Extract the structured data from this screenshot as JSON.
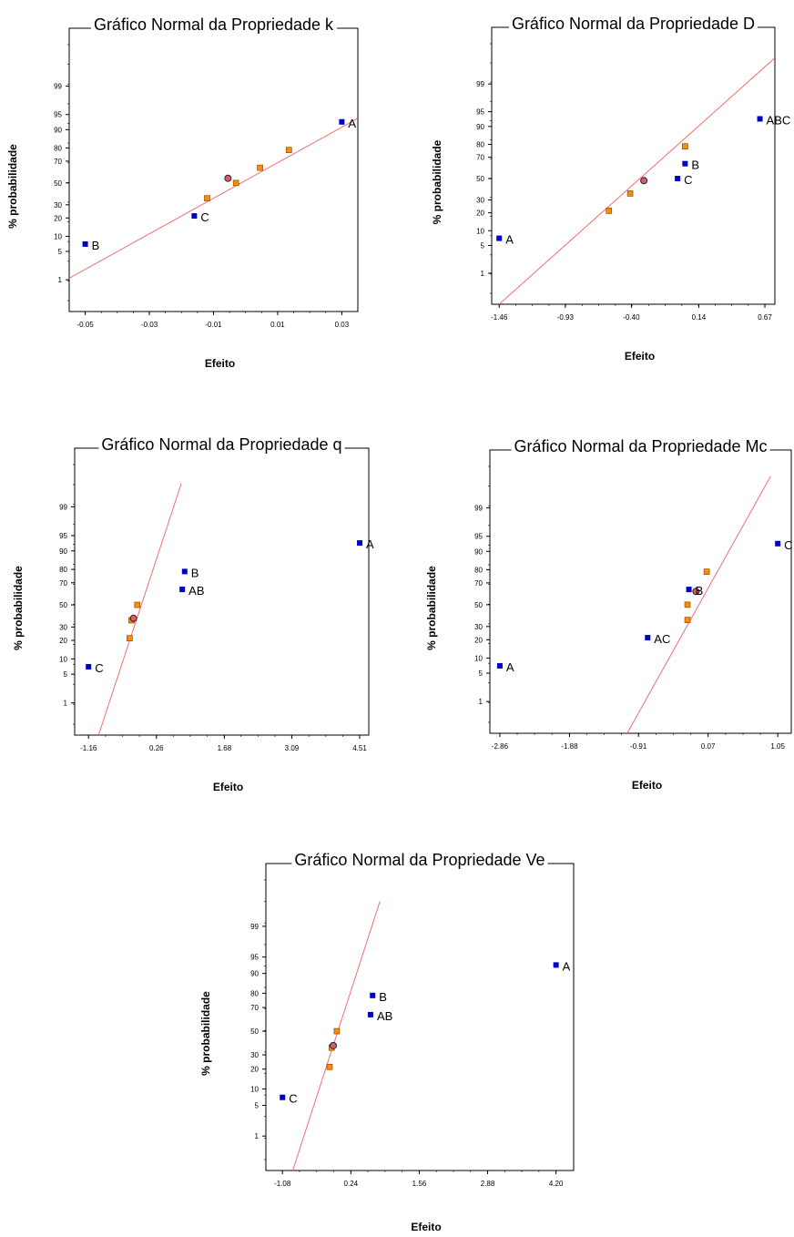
{
  "colors": {
    "significant": "#0000cc",
    "nonsignificant": "#ff8c00",
    "line": "#f07070",
    "frame": "#000000"
  },
  "chart_data": [
    {
      "type": "scatter",
      "title": "Gráfico Normal da Propriedade k",
      "xlabel": "Efeito",
      "ylabel": "% probabilidade",
      "xticks": [
        "-0.05",
        "-0.03",
        "-0.01",
        "0.01",
        "0.03"
      ],
      "xlim": [
        -0.055,
        0.035
      ],
      "yticks": [
        "1",
        "5",
        "10",
        "20",
        "30",
        "50",
        "70",
        "80",
        "90",
        "95",
        "99"
      ],
      "line": [
        [
          -0.055,
          1.1
        ],
        [
          0.035,
          94
        ]
      ],
      "points": [
        {
          "x": -0.05,
          "y": 7.1,
          "label": "B",
          "kind": "significant"
        },
        {
          "x": -0.016,
          "y": 21.4,
          "label": "C",
          "kind": "significant"
        },
        {
          "x": -0.012,
          "y": 35.7,
          "label": "",
          "kind": "nonsignificant"
        },
        {
          "x": -0.003,
          "y": 50,
          "label": "",
          "kind": "nonsignificant"
        },
        {
          "x": -0.0055,
          "y": 54.5,
          "label": "",
          "kind": "center"
        },
        {
          "x": 0.0045,
          "y": 64.3,
          "label": "",
          "kind": "nonsignificant"
        },
        {
          "x": 0.0135,
          "y": 78.6,
          "label": "",
          "kind": "nonsignificant"
        },
        {
          "x": 0.03,
          "y": 92.9,
          "label": "A",
          "kind": "significant"
        }
      ]
    },
    {
      "type": "scatter",
      "title": "Gráfico Normal da Propriedade D",
      "xlabel": "Efeito",
      "ylabel": "% probabilidade",
      "xticks": [
        "-1.46",
        "-0.93",
        "-0.40",
        "0.14",
        "0.67"
      ],
      "xlim": [
        -1.52,
        0.75
      ],
      "yticks": [
        "1",
        "5",
        "10",
        "20",
        "30",
        "50",
        "70",
        "80",
        "90",
        "95",
        "99"
      ],
      "line": [
        [
          -1.46,
          0.1
        ],
        [
          0.75,
          99.85
        ]
      ],
      "points": [
        {
          "x": -1.46,
          "y": 7.1,
          "label": "A",
          "kind": "significant"
        },
        {
          "x": -0.58,
          "y": 21.4,
          "label": "",
          "kind": "nonsignificant"
        },
        {
          "x": -0.41,
          "y": 35.7,
          "label": "",
          "kind": "nonsignificant"
        },
        {
          "x": -0.3,
          "y": 48,
          "label": "",
          "kind": "center"
        },
        {
          "x": -0.03,
          "y": 50,
          "label": "C",
          "kind": "significant"
        },
        {
          "x": 0.03,
          "y": 64.3,
          "label": "B",
          "kind": "significant"
        },
        {
          "x": 0.03,
          "y": 78.6,
          "label": "",
          "kind": "nonsignificant"
        },
        {
          "x": 0.63,
          "y": 92.9,
          "label": "ABC",
          "kind": "significant"
        }
      ]
    },
    {
      "type": "scatter",
      "title": "Gráfico Normal da Propriedade q",
      "xlabel": "Efeito",
      "ylabel": "% probabilidade",
      "xticks": [
        "-1.16",
        "0.26",
        "1.68",
        "3.09",
        "4.51"
      ],
      "xlim": [
        -1.45,
        4.7
      ],
      "yticks": [
        "1",
        "5",
        "10",
        "20",
        "30",
        "50",
        "70",
        "80",
        "90",
        "95",
        "99"
      ],
      "line": [
        [
          -0.97,
          0.08
        ],
        [
          0.78,
          99.8
        ]
      ],
      "points": [
        {
          "x": -1.16,
          "y": 7.1,
          "label": "C",
          "kind": "significant"
        },
        {
          "x": -0.3,
          "y": 21.4,
          "label": "",
          "kind": "nonsignificant"
        },
        {
          "x": -0.26,
          "y": 35.7,
          "label": "",
          "kind": "nonsignificant"
        },
        {
          "x": -0.22,
          "y": 37.5,
          "label": "",
          "kind": "center"
        },
        {
          "x": -0.14,
          "y": 50,
          "label": "",
          "kind": "nonsignificant"
        },
        {
          "x": 0.8,
          "y": 64.3,
          "label": "AB",
          "kind": "significant"
        },
        {
          "x": 0.85,
          "y": 78.6,
          "label": "B",
          "kind": "significant"
        },
        {
          "x": 4.51,
          "y": 92.9,
          "label": "A",
          "kind": "significant"
        }
      ]
    },
    {
      "type": "scatter",
      "title": "Gráfico Normal da Propriedade Mc",
      "xlabel": "Efeito",
      "ylabel": "% probabilidade",
      "xticks": [
        "-2.86",
        "-1.88",
        "-0.91",
        "0.07",
        "1.05"
      ],
      "xlim": [
        -3.0,
        1.24
      ],
      "yticks": [
        "1",
        "5",
        "10",
        "20",
        "30",
        "50",
        "70",
        "80",
        "90",
        "95",
        "99"
      ],
      "line": [
        [
          -1.09,
          0.08
        ],
        [
          0.95,
          99.9
        ]
      ],
      "points": [
        {
          "x": -2.86,
          "y": 7.1,
          "label": "A",
          "kind": "significant"
        },
        {
          "x": -0.78,
          "y": 21.4,
          "label": "AC",
          "kind": "significant"
        },
        {
          "x": -0.22,
          "y": 35.7,
          "label": "",
          "kind": "nonsignificant"
        },
        {
          "x": -0.22,
          "y": 50,
          "label": "",
          "kind": "nonsignificant"
        },
        {
          "x": -0.1,
          "y": 62.5,
          "label": "",
          "kind": "center"
        },
        {
          "x": -0.2,
          "y": 64.3,
          "label": "B",
          "kind": "significant"
        },
        {
          "x": 0.05,
          "y": 78.6,
          "label": "",
          "kind": "nonsignificant"
        },
        {
          "x": 1.05,
          "y": 92.9,
          "label": "C",
          "kind": "significant"
        }
      ]
    },
    {
      "type": "scatter",
      "title": "Gráfico Normal da Propriedade Ve",
      "xlabel": "Efeito",
      "ylabel": "% probabilidade",
      "xticks": [
        "-1.08",
        "0.24",
        "1.56",
        "2.88",
        "4.20"
      ],
      "xlim": [
        -1.4,
        4.54
      ],
      "yticks": [
        "1",
        "5",
        "10",
        "20",
        "30",
        "50",
        "70",
        "80",
        "90",
        "95",
        "99"
      ],
      "line": [
        [
          -0.9,
          0.08
        ],
        [
          0.8,
          99.8
        ]
      ],
      "points": [
        {
          "x": -1.08,
          "y": 7.1,
          "label": "C",
          "kind": "significant"
        },
        {
          "x": -0.17,
          "y": 21.4,
          "label": "",
          "kind": "nonsignificant"
        },
        {
          "x": -0.13,
          "y": 35.7,
          "label": "",
          "kind": "nonsignificant"
        },
        {
          "x": -0.1,
          "y": 37.5,
          "label": "",
          "kind": "center"
        },
        {
          "x": -0.03,
          "y": 50,
          "label": "",
          "kind": "nonsignificant"
        },
        {
          "x": 0.62,
          "y": 64.3,
          "label": "AB",
          "kind": "significant"
        },
        {
          "x": 0.66,
          "y": 78.6,
          "label": "B",
          "kind": "significant"
        },
        {
          "x": 4.2,
          "y": 92.9,
          "label": "A",
          "kind": "significant"
        }
      ]
    }
  ]
}
